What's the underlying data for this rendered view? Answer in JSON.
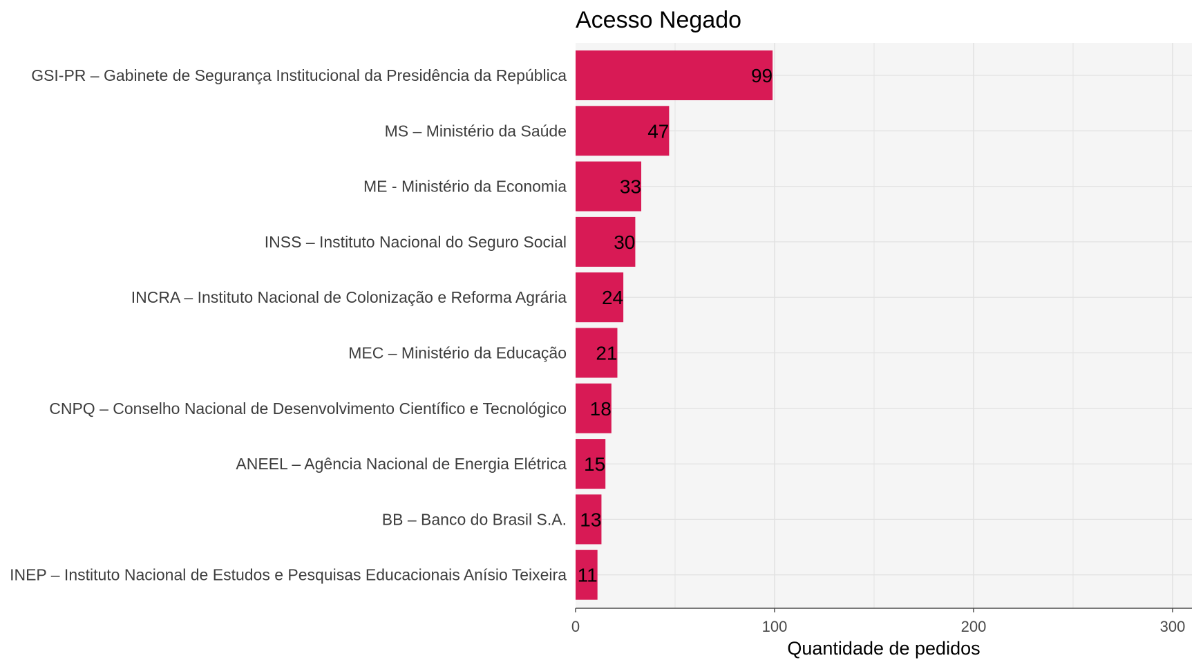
{
  "colors": {
    "bar": "#d81a55",
    "panel_background": "#f5f5f5",
    "gridline": "#e2e2e2",
    "axis_line": "#4d4d4d"
  },
  "chart_data": {
    "type": "bar",
    "orientation": "horizontal",
    "title": "Acesso Negado",
    "xlabel": "Quantidade de pedidos",
    "ylabel": "",
    "xlim": [
      0,
      310
    ],
    "xticks": [
      0,
      100,
      200,
      300
    ],
    "grid": true,
    "legend": "none",
    "categories": [
      "GSI-PR – Gabinete de Segurança Institucional da Presidência da República",
      "MS – Ministério da Saúde",
      "ME - Ministério da Economia",
      "INSS – Instituto Nacional do Seguro Social",
      "INCRA – Instituto Nacional de Colonização e Reforma Agrária",
      "MEC – Ministério da Educação",
      "CNPQ – Conselho Nacional de Desenvolvimento Científico e Tecnológico",
      "ANEEL – Agência Nacional de Energia Elétrica",
      "BB – Banco do Brasil S.A.",
      "INEP – Instituto Nacional de Estudos e Pesquisas Educacionais Anísio Teixeira"
    ],
    "values": [
      99,
      47,
      33,
      30,
      24,
      21,
      18,
      15,
      13,
      11
    ]
  }
}
